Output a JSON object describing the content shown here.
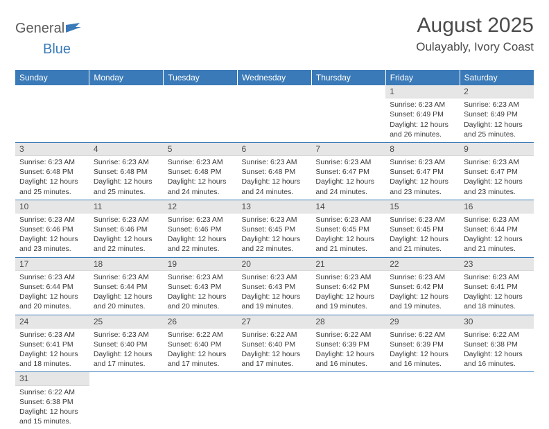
{
  "brand": {
    "name_part1": "General",
    "name_part2": "Blue"
  },
  "title": "August 2025",
  "location": "Oulayably, Ivory Coast",
  "colors": {
    "header_bg": "#3a7ab8",
    "header_text": "#ffffff",
    "daynum_bg": "#e6e6e6",
    "text": "#3a3a3a",
    "rule": "#3a7ab8"
  },
  "weekdays": [
    "Sunday",
    "Monday",
    "Tuesday",
    "Wednesday",
    "Thursday",
    "Friday",
    "Saturday"
  ],
  "weeks": [
    [
      null,
      null,
      null,
      null,
      null,
      {
        "n": "1",
        "sr": "6:23 AM",
        "ss": "6:49 PM",
        "dl": "12 hours and 26 minutes."
      },
      {
        "n": "2",
        "sr": "6:23 AM",
        "ss": "6:49 PM",
        "dl": "12 hours and 25 minutes."
      }
    ],
    [
      {
        "n": "3",
        "sr": "6:23 AM",
        "ss": "6:48 PM",
        "dl": "12 hours and 25 minutes."
      },
      {
        "n": "4",
        "sr": "6:23 AM",
        "ss": "6:48 PM",
        "dl": "12 hours and 25 minutes."
      },
      {
        "n": "5",
        "sr": "6:23 AM",
        "ss": "6:48 PM",
        "dl": "12 hours and 24 minutes."
      },
      {
        "n": "6",
        "sr": "6:23 AM",
        "ss": "6:48 PM",
        "dl": "12 hours and 24 minutes."
      },
      {
        "n": "7",
        "sr": "6:23 AM",
        "ss": "6:47 PM",
        "dl": "12 hours and 24 minutes."
      },
      {
        "n": "8",
        "sr": "6:23 AM",
        "ss": "6:47 PM",
        "dl": "12 hours and 23 minutes."
      },
      {
        "n": "9",
        "sr": "6:23 AM",
        "ss": "6:47 PM",
        "dl": "12 hours and 23 minutes."
      }
    ],
    [
      {
        "n": "10",
        "sr": "6:23 AM",
        "ss": "6:46 PM",
        "dl": "12 hours and 23 minutes."
      },
      {
        "n": "11",
        "sr": "6:23 AM",
        "ss": "6:46 PM",
        "dl": "12 hours and 22 minutes."
      },
      {
        "n": "12",
        "sr": "6:23 AM",
        "ss": "6:46 PM",
        "dl": "12 hours and 22 minutes."
      },
      {
        "n": "13",
        "sr": "6:23 AM",
        "ss": "6:45 PM",
        "dl": "12 hours and 22 minutes."
      },
      {
        "n": "14",
        "sr": "6:23 AM",
        "ss": "6:45 PM",
        "dl": "12 hours and 21 minutes."
      },
      {
        "n": "15",
        "sr": "6:23 AM",
        "ss": "6:45 PM",
        "dl": "12 hours and 21 minutes."
      },
      {
        "n": "16",
        "sr": "6:23 AM",
        "ss": "6:44 PM",
        "dl": "12 hours and 21 minutes."
      }
    ],
    [
      {
        "n": "17",
        "sr": "6:23 AM",
        "ss": "6:44 PM",
        "dl": "12 hours and 20 minutes."
      },
      {
        "n": "18",
        "sr": "6:23 AM",
        "ss": "6:44 PM",
        "dl": "12 hours and 20 minutes."
      },
      {
        "n": "19",
        "sr": "6:23 AM",
        "ss": "6:43 PM",
        "dl": "12 hours and 20 minutes."
      },
      {
        "n": "20",
        "sr": "6:23 AM",
        "ss": "6:43 PM",
        "dl": "12 hours and 19 minutes."
      },
      {
        "n": "21",
        "sr": "6:23 AM",
        "ss": "6:42 PM",
        "dl": "12 hours and 19 minutes."
      },
      {
        "n": "22",
        "sr": "6:23 AM",
        "ss": "6:42 PM",
        "dl": "12 hours and 19 minutes."
      },
      {
        "n": "23",
        "sr": "6:23 AM",
        "ss": "6:41 PM",
        "dl": "12 hours and 18 minutes."
      }
    ],
    [
      {
        "n": "24",
        "sr": "6:23 AM",
        "ss": "6:41 PM",
        "dl": "12 hours and 18 minutes."
      },
      {
        "n": "25",
        "sr": "6:23 AM",
        "ss": "6:40 PM",
        "dl": "12 hours and 17 minutes."
      },
      {
        "n": "26",
        "sr": "6:22 AM",
        "ss": "6:40 PM",
        "dl": "12 hours and 17 minutes."
      },
      {
        "n": "27",
        "sr": "6:22 AM",
        "ss": "6:40 PM",
        "dl": "12 hours and 17 minutes."
      },
      {
        "n": "28",
        "sr": "6:22 AM",
        "ss": "6:39 PM",
        "dl": "12 hours and 16 minutes."
      },
      {
        "n": "29",
        "sr": "6:22 AM",
        "ss": "6:39 PM",
        "dl": "12 hours and 16 minutes."
      },
      {
        "n": "30",
        "sr": "6:22 AM",
        "ss": "6:38 PM",
        "dl": "12 hours and 16 minutes."
      }
    ],
    [
      {
        "n": "31",
        "sr": "6:22 AM",
        "ss": "6:38 PM",
        "dl": "12 hours and 15 minutes."
      },
      null,
      null,
      null,
      null,
      null,
      null
    ]
  ],
  "labels": {
    "sunrise": "Sunrise:",
    "sunset": "Sunset:",
    "daylight": "Daylight:"
  }
}
